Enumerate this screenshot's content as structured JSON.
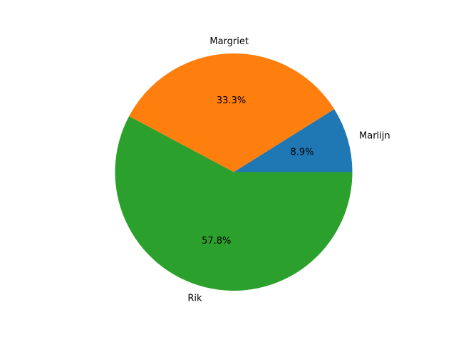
{
  "chart_data": {
    "type": "pie",
    "slices": [
      {
        "label": "Marlijn",
        "value": 8.9,
        "pct_label": "8.9%",
        "color": "#1f77b4"
      },
      {
        "label": "Margriet",
        "value": 33.3,
        "pct_label": "33.3%",
        "color": "#ff7f0e"
      },
      {
        "label": "Rik",
        "value": 57.8,
        "pct_label": "57.8%",
        "color": "#2ca02c"
      }
    ],
    "start_angle_deg": 0,
    "direction": "counterclockwise",
    "legend": "none",
    "title": ""
  }
}
